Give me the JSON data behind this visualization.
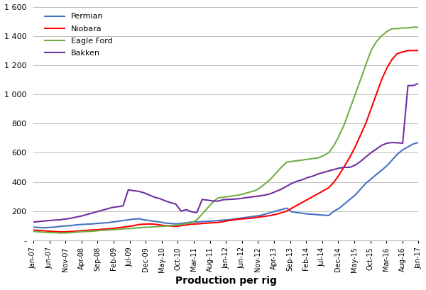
{
  "title": "",
  "xlabel": "Production per rig",
  "ylabel": "",
  "ylim": [
    0,
    1600
  ],
  "yticks": [
    0,
    200,
    400,
    600,
    800,
    1000,
    1200,
    1400,
    1600
  ],
  "ytick_labels": [
    "-",
    "200",
    "400",
    "600",
    "800",
    "1 000",
    "1 200",
    "1 400",
    "1 600"
  ],
  "series": {
    "Permian": {
      "color": "#4472C4",
      "data": [
        90,
        88,
        85,
        88,
        90,
        95,
        98,
        100,
        105,
        108,
        110,
        112,
        115,
        118,
        120,
        125,
        130,
        135,
        140,
        145,
        148,
        140,
        135,
        130,
        125,
        118,
        115,
        112,
        115,
        120,
        125,
        125,
        128,
        130,
        132,
        135,
        138,
        140,
        145,
        150,
        155,
        160,
        165,
        170,
        180,
        190,
        200,
        210,
        220,
        195,
        190,
        185,
        180,
        178,
        175,
        172,
        170,
        200,
        220,
        250,
        280,
        310,
        350,
        390,
        420,
        450,
        480,
        510,
        550,
        590,
        620,
        640,
        660,
        670
      ]
    },
    "Niobara": {
      "color": "#FF0000",
      "data": [
        70,
        68,
        65,
        62,
        60,
        58,
        58,
        60,
        62,
        65,
        68,
        70,
        72,
        75,
        78,
        80,
        85,
        90,
        95,
        100,
        108,
        110,
        112,
        110,
        105,
        100,
        98,
        95,
        100,
        105,
        110,
        112,
        115,
        118,
        120,
        122,
        128,
        135,
        140,
        145,
        148,
        150,
        155,
        160,
        165,
        170,
        178,
        188,
        200,
        220,
        240,
        260,
        280,
        300,
        320,
        340,
        360,
        400,
        450,
        510,
        570,
        640,
        720,
        800,
        900,
        1000,
        1100,
        1180,
        1240,
        1280,
        1290,
        1300,
        1300,
        1300
      ]
    },
    "Eagle Ford": {
      "color": "#70AD47",
      "data": [
        60,
        58,
        55,
        53,
        52,
        50,
        50,
        52,
        55,
        58,
        60,
        62,
        65,
        68,
        70,
        72,
        75,
        78,
        80,
        82,
        85,
        88,
        90,
        92,
        95,
        98,
        100,
        102,
        108,
        115,
        120,
        140,
        180,
        220,
        260,
        290,
        295,
        300,
        305,
        310,
        320,
        330,
        340,
        360,
        390,
        420,
        460,
        500,
        535,
        540,
        545,
        550,
        555,
        560,
        565,
        580,
        600,
        650,
        720,
        800,
        900,
        1000,
        1100,
        1200,
        1300,
        1360,
        1400,
        1430,
        1450,
        1450,
        1455,
        1455,
        1460,
        1460
      ]
    },
    "Bakken": {
      "color": "#7030A0",
      "data": [
        125,
        128,
        132,
        135,
        138,
        140,
        145,
        150,
        158,
        165,
        175,
        185,
        195,
        205,
        215,
        225,
        230,
        235,
        345,
        340,
        335,
        325,
        310,
        295,
        285,
        270,
        258,
        248,
        200,
        210,
        195,
        190,
        280,
        275,
        270,
        268,
        278,
        280,
        282,
        285,
        290,
        295,
        300,
        305,
        310,
        320,
        335,
        350,
        370,
        390,
        405,
        415,
        430,
        440,
        455,
        465,
        475,
        485,
        495,
        500,
        500,
        515,
        540,
        570,
        600,
        625,
        650,
        665,
        670,
        668,
        665,
        1060,
        1060,
        1075
      ]
    }
  },
  "xtick_labels": [
    "Jan-07",
    "Jun-07",
    "Nov-07",
    "Apr-08",
    "Sep-08",
    "Feb-09",
    "Jul-09",
    "Dec-09",
    "May-10",
    "Oct-10",
    "Mar-11",
    "Aug-11",
    "Jan-12",
    "Jun-12",
    "Nov-12",
    "Apr-13",
    "Sep-13",
    "Feb-14",
    "Jul-14",
    "Dec-14",
    "May-15",
    "Oct-15",
    "Mar-16",
    "Aug-16",
    "Jan-17"
  ],
  "background_color": "#FFFFFF",
  "grid_color": "#BFBFBF"
}
